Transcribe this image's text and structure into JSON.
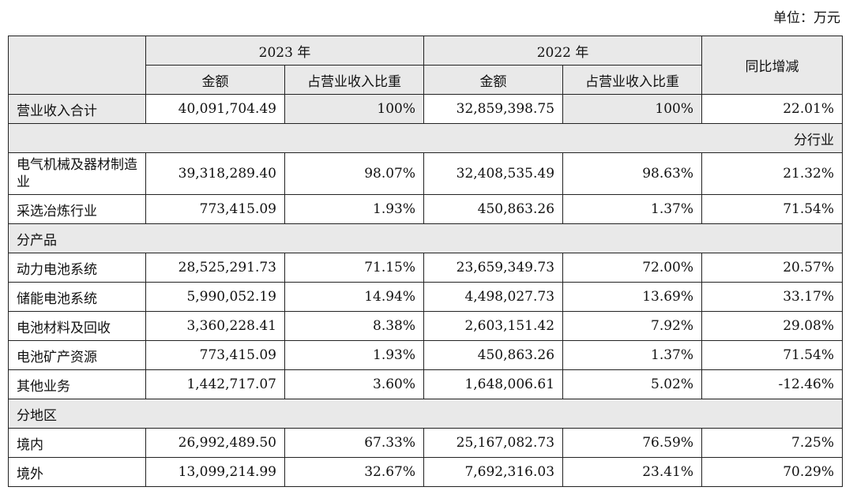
{
  "unit": "单位：万元",
  "header": {
    "year1": "2023 年",
    "year2": "2022 年",
    "amount": "金额",
    "ratio": "占营业收入比重",
    "yoy": "同比增减"
  },
  "total": {
    "label": "营业收入合计",
    "amt23": "40,091,704.49",
    "pct23": "100%",
    "amt22": "32,859,398.75",
    "pct22": "100%",
    "yoy": "22.01%"
  },
  "sections": {
    "industry": "分行业",
    "product": "分产品",
    "region": "分地区"
  },
  "industry_rows": [
    {
      "label": "电气机械及器材制造业",
      "amt23": "39,318,289.40",
      "pct23": "98.07%",
      "amt22": "32,408,535.49",
      "pct22": "98.63%",
      "yoy": "21.32%"
    },
    {
      "label": "采选冶炼行业",
      "amt23": "773,415.09",
      "pct23": "1.93%",
      "amt22": "450,863.26",
      "pct22": "1.37%",
      "yoy": "71.54%"
    }
  ],
  "product_rows": [
    {
      "label": "动力电池系统",
      "amt23": "28,525,291.73",
      "pct23": "71.15%",
      "amt22": "23,659,349.73",
      "pct22": "72.00%",
      "yoy": "20.57%"
    },
    {
      "label": "储能电池系统",
      "amt23": "5,990,052.19",
      "pct23": "14.94%",
      "amt22": "4,498,027.73",
      "pct22": "13.69%",
      "yoy": "33.17%"
    },
    {
      "label": "电池材料及回收",
      "amt23": "3,360,228.41",
      "pct23": "8.38%",
      "amt22": "2,603,151.42",
      "pct22": "7.92%",
      "yoy": "29.08%"
    },
    {
      "label": "电池矿产资源",
      "amt23": "773,415.09",
      "pct23": "1.93%",
      "amt22": "450,863.26",
      "pct22": "1.37%",
      "yoy": "71.54%"
    },
    {
      "label": "其他业务",
      "amt23": "1,442,717.07",
      "pct23": "3.60%",
      "amt22": "1,648,006.61",
      "pct22": "5.02%",
      "yoy": "-12.46%"
    }
  ],
  "region_rows": [
    {
      "label": "境内",
      "amt23": "26,992,489.50",
      "pct23": "67.33%",
      "amt22": "25,167,082.73",
      "pct22": "76.59%",
      "yoy": "7.25%"
    },
    {
      "label": "境外",
      "amt23": "13,099,214.99",
      "pct23": "32.67%",
      "amt22": "7,692,316.03",
      "pct22": "23.41%",
      "yoy": "70.29%"
    }
  ]
}
